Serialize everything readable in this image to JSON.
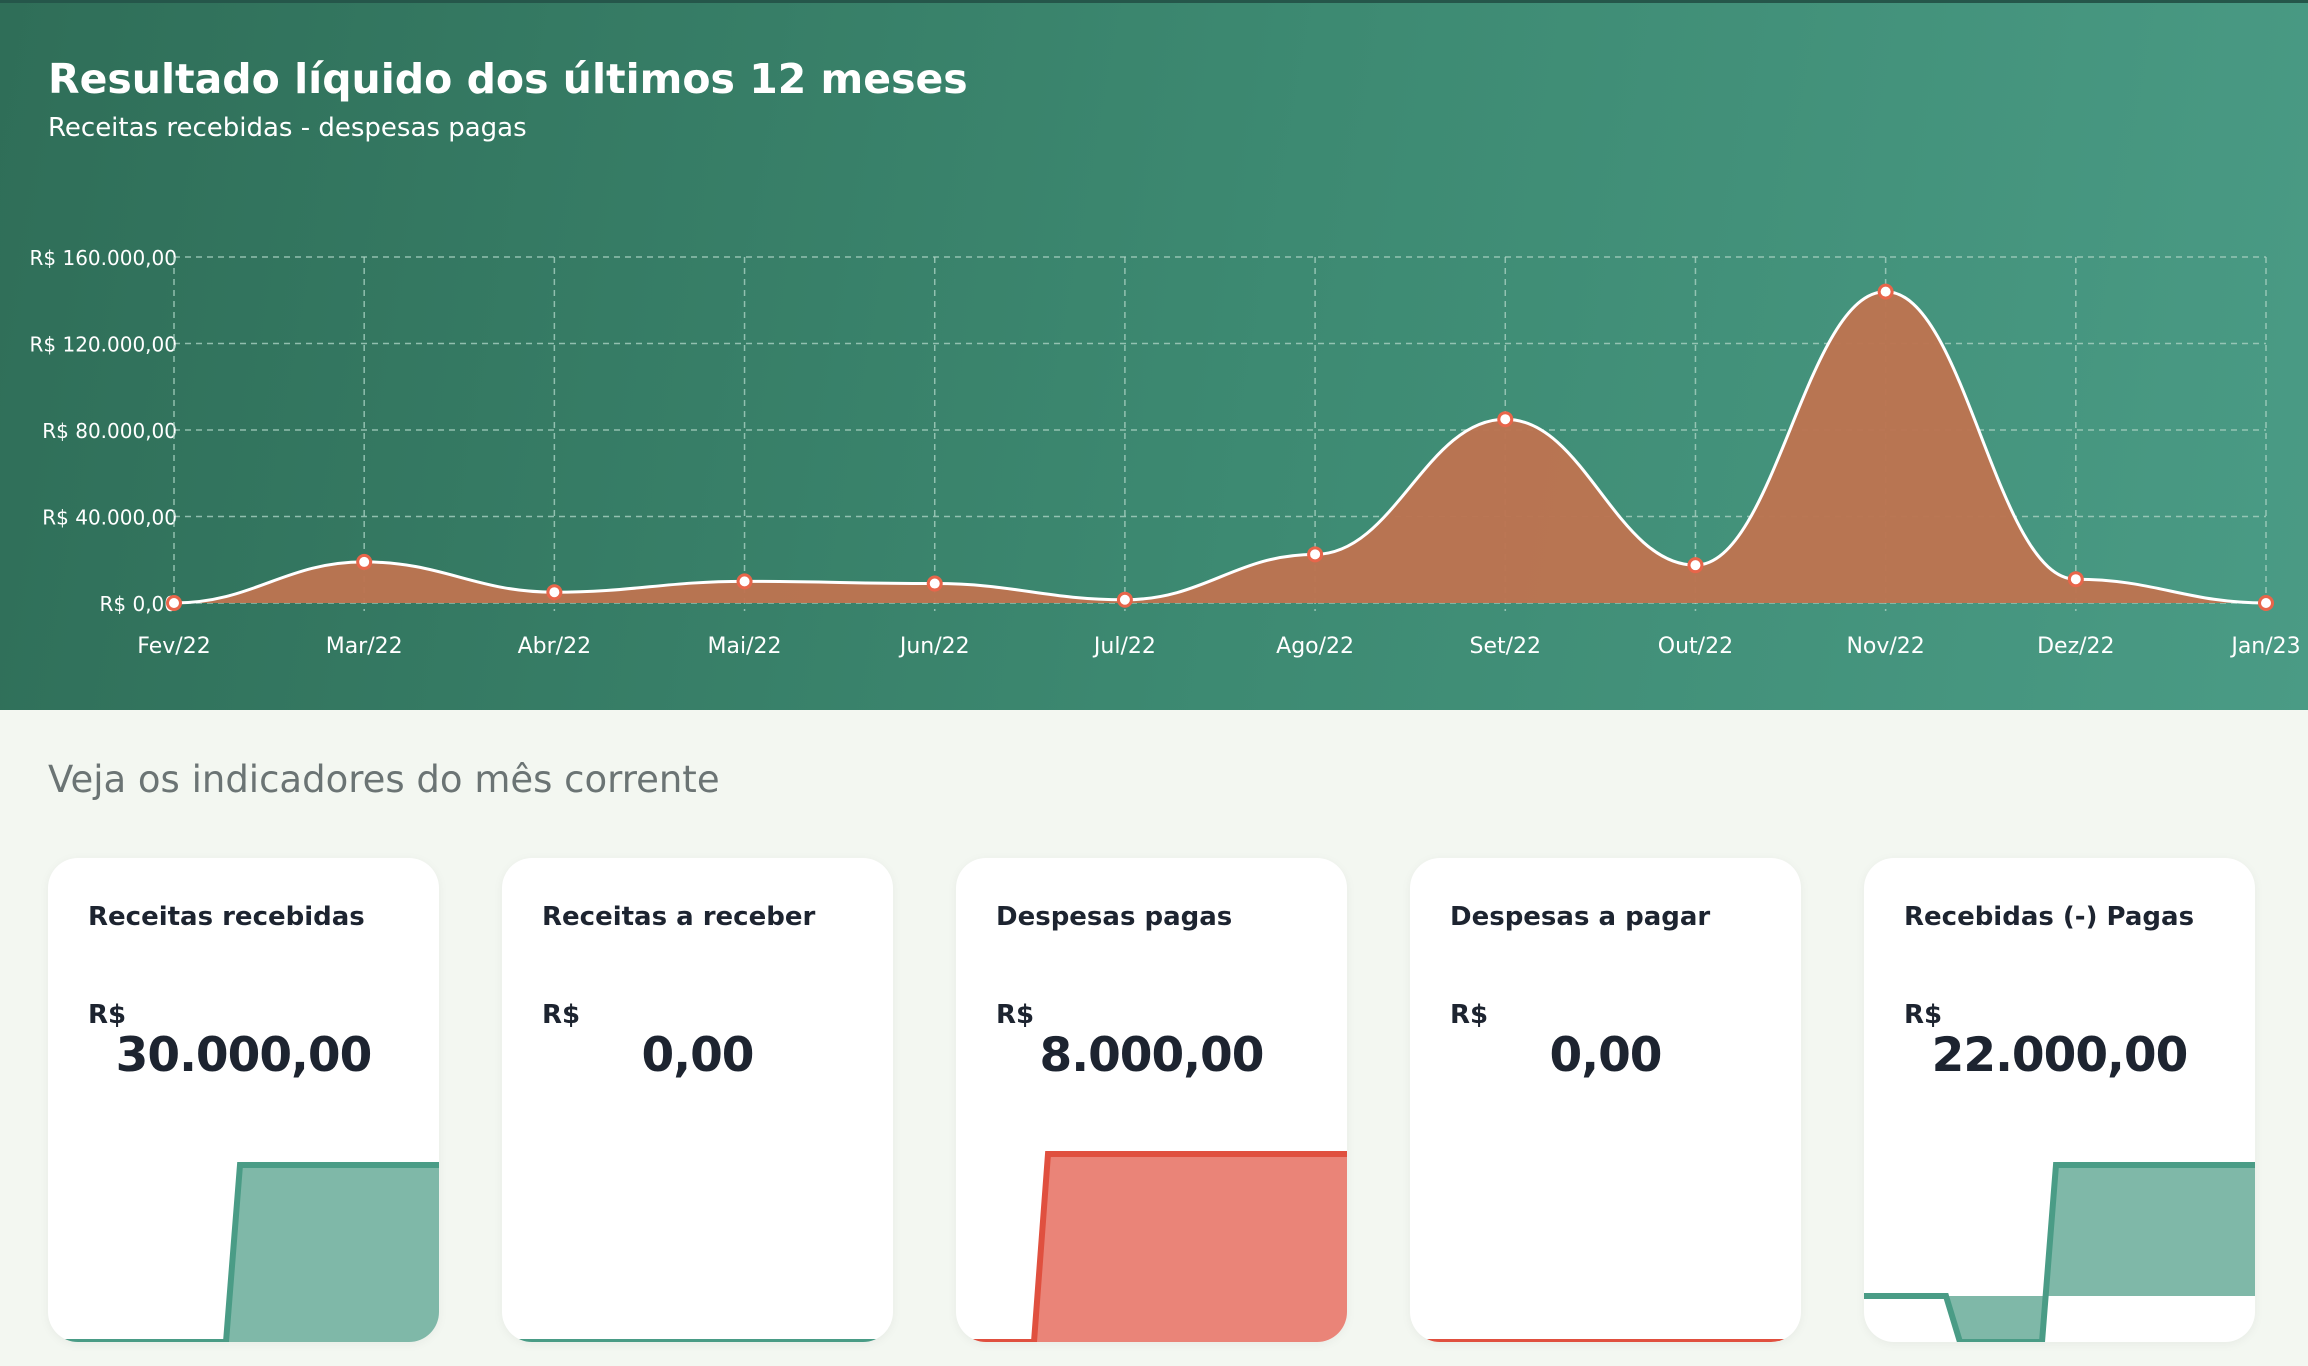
{
  "header": {
    "title": "Resultado líquido dos últimos 12 meses",
    "subtitle": "Receitas recebidas - despesas pagas"
  },
  "chart_data": {
    "type": "area",
    "categories": [
      "Fev/22",
      "Mar/22",
      "Abr/22",
      "Mai/22",
      "Jun/22",
      "Jul/22",
      "Ago/22",
      "Set/22",
      "Out/22",
      "Nov/22",
      "Dez/22",
      "Jan/23"
    ],
    "values": [
      0,
      19000,
      5000,
      10000,
      9000,
      1500,
      22500,
      85000,
      17500,
      144000,
      11000,
      0
    ],
    "yticks": [
      "R$ 0,00",
      "R$ 40.000,00",
      "R$ 80.000,00",
      "R$ 120.000,00",
      "R$ 160.000,00"
    ],
    "ylim": [
      0,
      160000
    ],
    "grid": true,
    "colors": {
      "fill": "#bc7451",
      "line": "#ffffff",
      "point": "#e8654a",
      "grid": "#a9d1c2"
    }
  },
  "indicators": {
    "heading": "Veja os indicadores do mês corrente",
    "cards": [
      {
        "title": "Receitas recebidas",
        "currency": "R$",
        "value": "30.000,00"
      },
      {
        "title": "Receitas a receber",
        "currency": "R$",
        "value": "0,00"
      },
      {
        "title": "Despesas pagas",
        "currency": "R$",
        "value": "8.000,00"
      },
      {
        "title": "Despesas a pagar",
        "currency": "R$",
        "value": "0,00"
      },
      {
        "title": "Recebidas (-) Pagas",
        "currency": "R$",
        "value": "22.000,00"
      }
    ]
  },
  "colors": {
    "green_line": "#4a9c86",
    "green_fill": "#7fb8a8",
    "red_line": "#e0503f",
    "red_fill": "#ea8478"
  }
}
